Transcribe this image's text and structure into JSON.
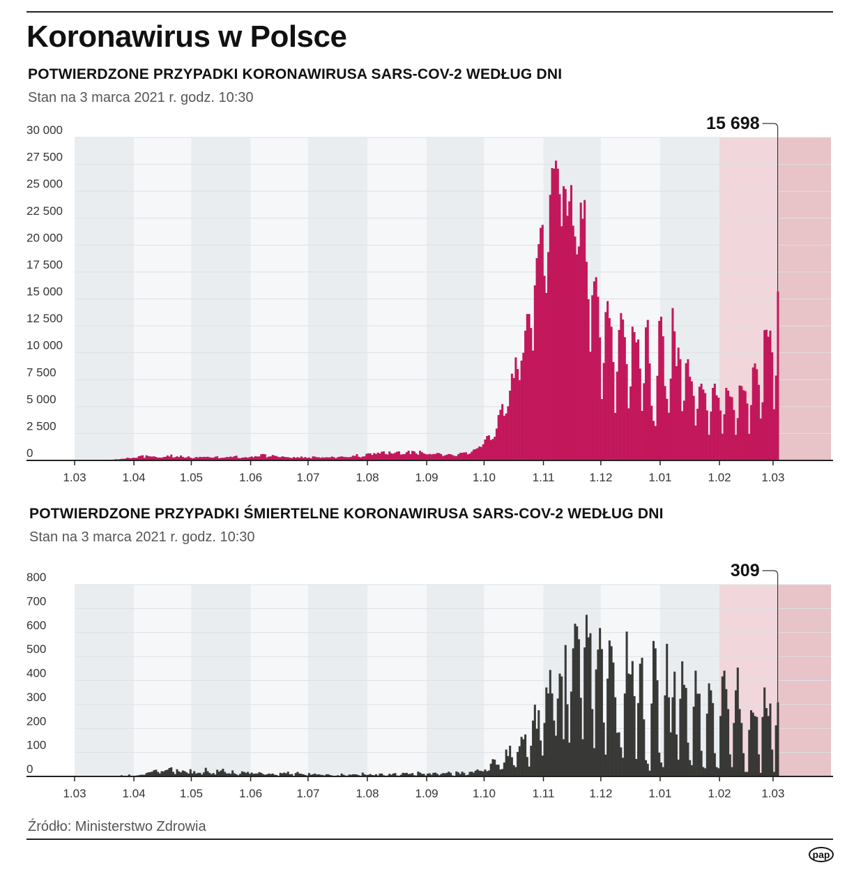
{
  "header": {
    "title": "Koronawirus w Polsce"
  },
  "footer": {
    "source": "Źródło: Ministerstwo Zdrowia",
    "logo_text": "pap"
  },
  "colors": {
    "cases": "#c2185b",
    "deaths": "#383836",
    "band_dark": "#e9edf0",
    "band_light": "#f5f7f9",
    "band_feb": "#f1d6db",
    "band_future": "#e8c3c8"
  },
  "chart_data": [
    {
      "type": "bar",
      "title": "POTWIERDZONE PRZYPADKI KORONAWIRUSA SARS-COV-2 WEDŁUG DNI",
      "subtitle": "Stan na 3 marca 2021 r. godz. 10:30",
      "xlabel": "",
      "ylabel": "",
      "ylim": [
        0,
        30000
      ],
      "y_ticks": [
        0,
        2500,
        5000,
        7500,
        10000,
        12500,
        15000,
        17500,
        20000,
        22500,
        25000,
        27500,
        30000
      ],
      "y_tick_labels": [
        "0",
        "2 500",
        "5 000",
        "7 500",
        "10 000",
        "12 500",
        "15 000",
        "17 500",
        "20 000",
        "22 500",
        "25 000",
        "27 500",
        "30 000"
      ],
      "x_tick_labels": [
        "1.03",
        "1.04",
        "1.05",
        "1.06",
        "1.07",
        "1.08",
        "1.09",
        "1.10",
        "1.11",
        "1.12",
        "1.01",
        "1.02",
        "1.03"
      ],
      "last_date": "2021-03-03",
      "annotation": {
        "label": "15 698",
        "value": 15698
      },
      "values": [
        1,
        0,
        0,
        1,
        6,
        6,
        5,
        5,
        11,
        17,
        36,
        21,
        52,
        27,
        46,
        72,
        77,
        111,
        98,
        115,
        152,
        150,
        170,
        249,
        224,
        193,
        256,
        243,
        243,
        392,
        437,
        475,
        244,
        475,
        404,
        370,
        357,
        380,
        318,
        260,
        268,
        254,
        311,
        336,
        461,
        363,
        545,
        263,
        306,
        381,
        313,
        460,
        334,
        255,
        287,
        380,
        261,
        197,
        230,
        319,
        272,
        330,
        307,
        331,
        318,
        345,
        297,
        263,
        260,
        347,
        380,
        198,
        240,
        247,
        264,
        320,
        301,
        358,
        313,
        395,
        443,
        230,
        203,
        255,
        280,
        302,
        252,
        312,
        369,
        292,
        400,
        361,
        371,
        576,
        595,
        575,
        282,
        359,
        374,
        506,
        440,
        407,
        314,
        297,
        375,
        340,
        305,
        302,
        263,
        218,
        320,
        250,
        304,
        247,
        367,
        245,
        311,
        229,
        282,
        193,
        371,
        358,
        296,
        299,
        243,
        290,
        266,
        299,
        285,
        286,
        358,
        299,
        209,
        301,
        342,
        376,
        334,
        313,
        306,
        296,
        336,
        443,
        418,
        584,
        337,
        279,
        362,
        380,
        615,
        657,
        658,
        512,
        680,
        599,
        726,
        640,
        809,
        843,
        596,
        548,
        832,
        661,
        624,
        726,
        811,
        843,
        548,
        573,
        598,
        764,
        903,
        587,
        887,
        840,
        642,
        527,
        900,
        767,
        650,
        581,
        555,
        601,
        558,
        597,
        599,
        695,
        676,
        589,
        406,
        471,
        530,
        600,
        573,
        499,
        426,
        400,
        579,
        700,
        710,
        741,
        756,
        563,
        637,
        808,
        1002,
        1054,
        1136,
        1300,
        1250,
        1500,
        1940,
        2270,
        2330,
        1900,
        1990,
        2200,
        2960,
        4210,
        4700,
        5230,
        4150,
        4360,
        5030,
        6480,
        8060,
        7650,
        9570,
        8490,
        7450,
        9270,
        10000,
        12050,
        13600,
        13600,
        12300,
        10200,
        16260,
        18790,
        20090,
        21600,
        21880,
        17150,
        15550,
        19350,
        24670,
        27150,
        27100,
        27840,
        27100,
        24730,
        21750,
        25470,
        25210,
        22720,
        24060,
        25570,
        21800,
        20800,
        19140,
        19870,
        23950,
        22440,
        24190,
        18450,
        14970,
        10100,
        15340,
        16630,
        17020,
        15200,
        11430,
        5700,
        9050,
        13780,
        14800,
        13220,
        12420,
        9140,
        4410,
        8250,
        12120,
        13690,
        13090,
        11450,
        8940,
        4840,
        6870,
        12420,
        11920,
        10970,
        11230,
        8530,
        4600,
        7170,
        12360,
        13050,
        9010,
        5080,
        3670,
        3200,
        7860,
        12960,
        13350,
        11530,
        6910,
        5720,
        4430,
        7600,
        14150,
        11990,
        8750,
        10480,
        9400,
        4580,
        5550,
        9030,
        9400,
        7780,
        7340,
        6000,
        3240,
        4800,
        6850,
        7130,
        6590,
        6260,
        4640,
        2380,
        4540,
        6740,
        7130,
        6050,
        5830,
        4640,
        2480,
        4280,
        6740,
        6480,
        5940,
        5880,
        4690,
        2380,
        3930,
        6960,
        6910,
        6520,
        6440,
        5290,
        2480,
        5140,
        8640,
        9010,
        8470,
        7020,
        3890,
        5400,
        12100,
        12140,
        11490,
        12050,
        10040,
        4750,
        7880,
        15698
      ]
    },
    {
      "type": "bar",
      "title": "POTWIERDZONE PRZYPADKI ŚMIERTELNE KORONAWIRUSA SARS-COV-2 WEDŁUG DNI",
      "subtitle": "Stan na 3 marca 2021 r. godz. 10:30",
      "xlabel": "",
      "ylabel": "",
      "ylim": [
        0,
        800
      ],
      "y_ticks": [
        0,
        100,
        200,
        300,
        400,
        500,
        600,
        700,
        800
      ],
      "y_tick_labels": [
        "0",
        "100",
        "200",
        "300",
        "400",
        "500",
        "600",
        "700",
        "800"
      ],
      "x_tick_labels": [
        "1.03",
        "1.04",
        "1.05",
        "1.06",
        "1.07",
        "1.08",
        "1.09",
        "1.10",
        "1.11",
        "1.12",
        "1.01",
        "1.02",
        "1.03"
      ],
      "last_date": "2021-03-03",
      "annotation": {
        "label": "309",
        "value": 309
      },
      "values": [
        0,
        0,
        0,
        0,
        0,
        0,
        0,
        0,
        1,
        0,
        1,
        0,
        1,
        0,
        2,
        0,
        1,
        1,
        3,
        3,
        5,
        2,
        3,
        1,
        8,
        3,
        3,
        3,
        4,
        5,
        7,
        7,
        7,
        14,
        17,
        18,
        20,
        26,
        28,
        19,
        13,
        22,
        21,
        26,
        28,
        35,
        38,
        19,
        10,
        30,
        21,
        17,
        25,
        22,
        17,
        12,
        30,
        13,
        22,
        12,
        15,
        15,
        8,
        17,
        36,
        22,
        15,
        10,
        14,
        8,
        28,
        20,
        25,
        32,
        19,
        12,
        13,
        11,
        25,
        13,
        9,
        5,
        11,
        21,
        19,
        15,
        19,
        11,
        16,
        11,
        12,
        12,
        18,
        15,
        10,
        7,
        9,
        12,
        10,
        12,
        7,
        6,
        2,
        15,
        13,
        16,
        13,
        20,
        9,
        10,
        2,
        14,
        19,
        12,
        11,
        9,
        6,
        4,
        14,
        7,
        9,
        12,
        8,
        9,
        7,
        6,
        4,
        9,
        9,
        6,
        4,
        3,
        3,
        5,
        3,
        12,
        7,
        4,
        3,
        8,
        7,
        9,
        9,
        8,
        5,
        3,
        16,
        9,
        6,
        7,
        10,
        6,
        5,
        9,
        4,
        12,
        12,
        5,
        3,
        4,
        11,
        7,
        12,
        14,
        4,
        3,
        7,
        15,
        14,
        15,
        10,
        11,
        14,
        5,
        4,
        20,
        16,
        11,
        11,
        4,
        12,
        13,
        7,
        15,
        16,
        11,
        5,
        10,
        14,
        13,
        15,
        20,
        15,
        4,
        2,
        21,
        17,
        10,
        20,
        15,
        5,
        7,
        19,
        20,
        16,
        24,
        29,
        24,
        23,
        21,
        29,
        22,
        25,
        53,
        72,
        70,
        49,
        49,
        29,
        31,
        58,
        112,
        85,
        128,
        80,
        47,
        39,
        102,
        126,
        165,
        155,
        175,
        81,
        41,
        128,
        233,
        299,
        199,
        276,
        150,
        87,
        223,
        371,
        346,
        444,
        346,
        233,
        170,
        325,
        429,
        417,
        155,
        548,
        301,
        141,
        354,
        534,
        637,
        626,
        572,
        328,
        155,
        538,
        674,
        580,
        597,
        281,
        118,
        446,
        529,
        619,
        531,
        225,
        91,
        408,
        567,
        543,
        475,
        330,
        182,
        184,
        121,
        78,
        346,
        604,
        429,
        425,
        481,
        335,
        73,
        306,
        470,
        495,
        238,
        68,
        53,
        24,
        304,
        565,
        534,
        401,
        99,
        58,
        39,
        338,
        553,
        330,
        184,
        330,
        437,
        175,
        70,
        324,
        480,
        382,
        369,
        141,
        68,
        47,
        291,
        441,
        345,
        345,
        107,
        39,
        34,
        262,
        388,
        359,
        306,
        97,
        39,
        34,
        252,
        417,
        441,
        364,
        281,
        92,
        39,
        223,
        359,
        454,
        281,
        223,
        97,
        19,
        19,
        194,
        276,
        266,
        252,
        248,
        92,
        15,
        248,
        371,
        285,
        252,
        304,
        112,
        19,
        213,
        309
      ]
    }
  ]
}
